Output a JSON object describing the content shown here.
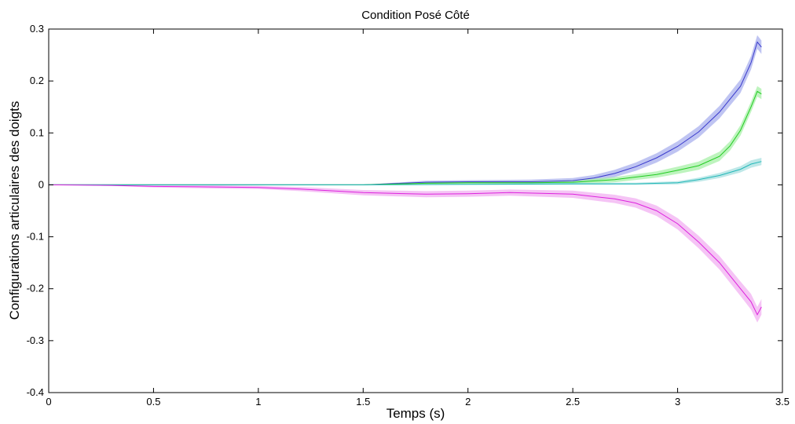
{
  "chart_data": {
    "type": "line",
    "title": "Condition Posé Côté",
    "xlabel": "Temps (s)",
    "ylabel": "Configurations articulaires des doigts",
    "xlim": [
      0,
      3.5
    ],
    "ylim": [
      -0.4,
      0.3
    ],
    "xticks": [
      "0",
      "0.5",
      "1",
      "1.5",
      "2",
      "2.5",
      "3",
      "3.5"
    ],
    "yticks": [
      "0.3",
      "0.2",
      "0.1",
      "0",
      "-0.1",
      "-0.2",
      "-0.3",
      "-0.4"
    ],
    "grid": false,
    "legend": null,
    "series": [
      {
        "color": "#3a3acc",
        "band_color": "#aab0ee",
        "x": [
          0,
          0.5,
          1,
          1.5,
          1.8,
          2.0,
          2.3,
          2.5,
          2.6,
          2.7,
          2.8,
          2.9,
          3.0,
          3.1,
          3.2,
          3.3,
          3.35,
          3.38,
          3.4
        ],
        "y": [
          0,
          0,
          0,
          0,
          0.005,
          0.006,
          0.006,
          0.008,
          0.013,
          0.022,
          0.035,
          0.052,
          0.074,
          0.102,
          0.14,
          0.19,
          0.235,
          0.275,
          0.265
        ],
        "band": [
          0,
          0,
          0,
          0,
          0.003,
          0.003,
          0.004,
          0.005,
          0.006,
          0.007,
          0.008,
          0.009,
          0.01,
          0.011,
          0.012,
          0.013,
          0.013,
          0.013,
          0.013
        ]
      },
      {
        "color": "#22cc22",
        "band_color": "#a8f0a8",
        "x": [
          0,
          0.5,
          1,
          1.5,
          1.8,
          2.0,
          2.3,
          2.5,
          2.7,
          2.9,
          3.0,
          3.1,
          3.2,
          3.25,
          3.3,
          3.35,
          3.38,
          3.4
        ],
        "y": [
          0,
          0,
          0,
          0,
          0.003,
          0.004,
          0.004,
          0.005,
          0.01,
          0.02,
          0.028,
          0.037,
          0.055,
          0.075,
          0.105,
          0.15,
          0.18,
          0.175
        ],
        "band": [
          0,
          0,
          0,
          0,
          0.002,
          0.003,
          0.003,
          0.004,
          0.005,
          0.006,
          0.007,
          0.008,
          0.009,
          0.009,
          0.01,
          0.01,
          0.01,
          0.01
        ]
      },
      {
        "color": "#22b8b8",
        "band_color": "#a8e0e0",
        "x": [
          0,
          0.5,
          1,
          1.5,
          2.0,
          2.5,
          2.8,
          3.0,
          3.1,
          3.2,
          3.3,
          3.35,
          3.4
        ],
        "y": [
          0,
          0,
          0,
          0,
          0.001,
          0.002,
          0.002,
          0.004,
          0.01,
          0.018,
          0.03,
          0.04,
          0.045
        ],
        "band": [
          0,
          0,
          0,
          0,
          0.001,
          0.002,
          0.002,
          0.003,
          0.004,
          0.005,
          0.006,
          0.007,
          0.007
        ]
      },
      {
        "color": "#dd22dd",
        "band_color": "#f2b0f2",
        "x": [
          0,
          0.3,
          0.5,
          0.8,
          1.0,
          1.2,
          1.5,
          1.8,
          2.0,
          2.2,
          2.5,
          2.7,
          2.8,
          2.9,
          3.0,
          3.1,
          3.2,
          3.3,
          3.35,
          3.38,
          3.4
        ],
        "y": [
          0,
          -0.001,
          -0.003,
          -0.004,
          -0.005,
          -0.008,
          -0.015,
          -0.018,
          -0.017,
          -0.015,
          -0.018,
          -0.027,
          -0.035,
          -0.05,
          -0.075,
          -0.11,
          -0.15,
          -0.2,
          -0.225,
          -0.25,
          -0.235
        ],
        "band": [
          0,
          0.001,
          0.002,
          0.003,
          0.003,
          0.004,
          0.005,
          0.006,
          0.006,
          0.006,
          0.007,
          0.008,
          0.009,
          0.01,
          0.011,
          0.012,
          0.013,
          0.014,
          0.015,
          0.015,
          0.015
        ]
      }
    ]
  }
}
